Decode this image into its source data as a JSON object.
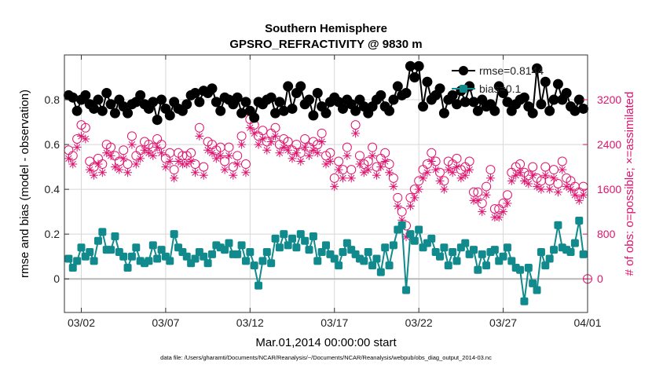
{
  "chart_data": {
    "type": "line",
    "title": "Southern Hemisphere",
    "subtitle": "GPSRO_REFRACTIVITY @ 9830 m",
    "xlabel": "Mar.01,2014 00:00:00 start",
    "ylabel": "rmse and bias (model - observation)",
    "ylabel_right": "# of obs: o=possible; ×=assimilated",
    "x_ticks": [
      "03/02",
      "03/07",
      "03/12",
      "03/17",
      "03/22",
      "03/27",
      "04/01"
    ],
    "x_tick_days": [
      1,
      6,
      11,
      16,
      21,
      26,
      31
    ],
    "xlim_days": [
      0,
      31
    ],
    "ylim": [
      -0.15,
      1.0
    ],
    "y_ticks": [
      "0",
      "0.2",
      "0.4",
      "0.6",
      "0.8"
    ],
    "y_tick_values": [
      0,
      0.2,
      0.4,
      0.6,
      0.8
    ],
    "ylim_right": [
      -600,
      4000
    ],
    "y_ticks_right": [
      "0",
      "800",
      "1600",
      "2400",
      "3200"
    ],
    "y_tick_values_right": [
      0,
      800,
      1600,
      2400,
      3200
    ],
    "grid": true,
    "legend_position": "top-right",
    "legend_entries": [
      "rmse=0.8144",
      "bias=0.1"
    ],
    "zero_line": 0,
    "colors": {
      "rmse": "#000000",
      "bias": "#108a8c",
      "obs": "#e0146e",
      "zero": "#b8b8b8",
      "grid": "#d8d8d8"
    },
    "x": [
      0.25,
      0.5,
      0.75,
      1.0,
      1.25,
      1.5,
      1.75,
      2.0,
      2.25,
      2.5,
      2.75,
      3.0,
      3.25,
      3.5,
      3.75,
      4.0,
      4.25,
      4.5,
      4.75,
      5.0,
      5.25,
      5.5,
      5.75,
      6.0,
      6.25,
      6.5,
      6.75,
      7.0,
      7.25,
      7.5,
      7.75,
      8.0,
      8.25,
      8.5,
      8.75,
      9.0,
      9.25,
      9.5,
      9.75,
      10.0,
      10.25,
      10.5,
      10.75,
      11.0,
      11.25,
      11.5,
      11.75,
      12.0,
      12.25,
      12.5,
      12.75,
      13.0,
      13.25,
      13.5,
      13.75,
      14.0,
      14.25,
      14.5,
      14.75,
      15.0,
      15.25,
      15.5,
      15.75,
      16.0,
      16.25,
      16.5,
      16.75,
      17.0,
      17.25,
      17.5,
      17.75,
      18.0,
      18.25,
      18.5,
      18.75,
      19.0,
      19.25,
      19.5,
      19.75,
      20.0,
      20.25,
      20.5,
      20.75,
      21.0,
      21.25,
      21.5,
      21.75,
      22.0,
      22.25,
      22.5,
      22.75,
      23.0,
      23.25,
      23.5,
      23.75,
      24.0,
      24.25,
      24.5,
      24.75,
      25.0,
      25.25,
      25.5,
      25.75,
      26.0,
      26.25,
      26.5,
      26.75,
      27.0,
      27.25,
      27.5,
      27.75,
      28.0,
      28.25,
      28.5,
      28.75,
      29.0,
      29.25,
      29.5,
      29.75,
      30.0,
      30.25,
      30.5,
      30.75
    ],
    "series": [
      {
        "name": "rmse",
        "axis": "left",
        "values": [
          0.82,
          0.81,
          0.75,
          0.8,
          0.82,
          0.78,
          0.76,
          0.8,
          0.75,
          0.83,
          0.78,
          0.74,
          0.8,
          0.77,
          0.74,
          0.78,
          0.79,
          0.82,
          0.78,
          0.76,
          0.79,
          0.71,
          0.8,
          0.76,
          0.73,
          0.79,
          0.76,
          0.75,
          0.78,
          0.82,
          0.83,
          0.79,
          0.84,
          0.83,
          0.85,
          0.79,
          0.75,
          0.81,
          0.8,
          0.78,
          0.81,
          0.74,
          0.79,
          0.75,
          0.72,
          0.79,
          0.78,
          0.8,
          0.81,
          0.74,
          0.79,
          0.75,
          0.86,
          0.76,
          0.83,
          0.86,
          0.78,
          0.8,
          0.73,
          0.83,
          0.77,
          0.74,
          0.79,
          0.81,
          0.79,
          0.76,
          0.8,
          0.78,
          0.75,
          0.8,
          0.77,
          0.74,
          0.77,
          0.8,
          0.82,
          0.77,
          0.75,
          0.8,
          0.86,
          0.82,
          0.83,
          0.95,
          0.9,
          0.95,
          0.77,
          0.88,
          0.8,
          0.82,
          0.85,
          0.74,
          0.8,
          0.82,
          0.78,
          0.84,
          0.79,
          0.86,
          0.79,
          0.75,
          0.8,
          0.77,
          0.78,
          0.75,
          0.86,
          0.83,
          0.79,
          0.75,
          0.78,
          0.8,
          0.81,
          0.77,
          0.74,
          0.94,
          0.78,
          0.88,
          0.75,
          0.8,
          0.87,
          0.8,
          0.83,
          0.77,
          0.75,
          0.8,
          0.76
        ]
      },
      {
        "name": "bias",
        "axis": "left",
        "values": [
          0.09,
          0.05,
          0.08,
          0.14,
          0.1,
          0.12,
          0.08,
          0.17,
          0.21,
          0.13,
          0.13,
          0.19,
          0.12,
          0.1,
          0.05,
          0.1,
          0.14,
          0.08,
          0.07,
          0.08,
          0.15,
          0.09,
          0.13,
          0.1,
          0.08,
          0.2,
          0.14,
          0.12,
          0.1,
          0.07,
          0.09,
          0.12,
          0.1,
          0.07,
          0.11,
          0.15,
          0.14,
          0.13,
          0.16,
          0.11,
          0.11,
          0.15,
          0.08,
          0.12,
          0.06,
          -0.03,
          0.08,
          0.12,
          0.07,
          0.18,
          0.14,
          0.2,
          0.15,
          0.18,
          0.14,
          0.2,
          0.17,
          0.13,
          0.19,
          0.08,
          0.12,
          0.15,
          0.11,
          0.09,
          0.06,
          0.12,
          0.16,
          0.13,
          0.11,
          0.09,
          0.08,
          0.12,
          0.06,
          0.09,
          0.03,
          0.14,
          0.06,
          0.15,
          0.22,
          0.24,
          -0.05,
          0.2,
          0.17,
          0.22,
          0.14,
          0.16,
          0.18,
          0.12,
          0.1,
          0.14,
          0.06,
          0.12,
          0.08,
          0.14,
          0.16,
          0.11,
          0.13,
          0.04,
          0.11,
          0.06,
          0.12,
          0.13,
          0.08,
          0.1,
          0.14,
          0.08,
          0.05,
          0.04,
          -0.1,
          0.05,
          -0.02,
          -0.05,
          0.12,
          0.06,
          0.09,
          0.13,
          0.24,
          0.14,
          0.13,
          0.12,
          0.16,
          0.26,
          0.11
        ]
      },
      {
        "name": "possible",
        "axis": "right",
        "values": [
          2300,
          2200,
          2500,
          2750,
          2700,
          2100,
          2000,
          2150,
          2050,
          2400,
          2350,
          2200,
          2100,
          2300,
          2050,
          2550,
          2200,
          2300,
          2450,
          2400,
          2350,
          2500,
          2400,
          2150,
          2250,
          1950,
          2250,
          2200,
          2200,
          2250,
          2050,
          2700,
          2000,
          2450,
          2400,
          2300,
          2350,
          2100,
          2350,
          2000,
          2200,
          2550,
          2050,
          2850,
          2750,
          2550,
          2650,
          2450,
          2600,
          2700,
          2400,
          2500,
          2450,
          2300,
          2400,
          2250,
          2500,
          2350,
          2450,
          2400,
          2600,
          2200,
          2250,
          1800,
          2100,
          1950,
          2350,
          1950,
          2750,
          2200,
          2050,
          2100,
          2350,
          2000,
          2150,
          2250,
          2050,
          1800,
          1450,
          1200,
          950,
          1450,
          1600,
          1750,
          1950,
          2050,
          2250,
          2100,
          1900,
          1750,
          2100,
          2050,
          2150,
          1950,
          2000,
          2100,
          1550,
          1550,
          1350,
          1650,
          1950,
          1250,
          1250,
          1350,
          1500,
          1900,
          2000,
          2050,
          1900,
          1850,
          2000,
          1800,
          1750,
          2000,
          1750,
          1950,
          1700,
          2100,
          1800,
          1750,
          1650,
          1550,
          1650
        ]
      },
      {
        "name": "assimilated",
        "axis": "right",
        "values": [
          2150,
          2050,
          2350,
          2550,
          2500,
          1950,
          1850,
          2050,
          1900,
          2250,
          2200,
          2000,
          1950,
          2150,
          1900,
          2400,
          2050,
          2150,
          2300,
          2250,
          2200,
          2350,
          2250,
          2000,
          2100,
          1800,
          2100,
          2050,
          2050,
          2100,
          1900,
          2550,
          1850,
          2300,
          2250,
          2150,
          2200,
          1950,
          2200,
          1850,
          2050,
          2400,
          1900,
          2700,
          2600,
          2400,
          2500,
          2300,
          2450,
          2550,
          2250,
          2350,
          2300,
          2150,
          2250,
          2100,
          2350,
          2200,
          2300,
          2250,
          2450,
          2050,
          2100,
          1650,
          1950,
          1800,
          2200,
          1800,
          2600,
          2050,
          1900,
          1950,
          2200,
          1850,
          2000,
          2100,
          1900,
          1650,
          1300,
          1050,
          750,
          1300,
          1450,
          1600,
          1800,
          1900,
          2100,
          1950,
          1750,
          1600,
          1950,
          1900,
          2000,
          1800,
          1850,
          1950,
          1400,
          1400,
          1200,
          1500,
          1800,
          1100,
          1100,
          1200,
          1350,
          1750,
          1850,
          1900,
          1750,
          1700,
          1850,
          1650,
          1600,
          1850,
          1600,
          1800,
          1550,
          1950,
          1650,
          1600,
          1500,
          1400,
          1500
        ]
      }
    ]
  },
  "footer": {
    "data_file": "data file: /Users/gharamti/Documents/NCAR/Reanalysis/~/Documents/NCAR/Reanalysis/webpub/obs_diag_output_2014-03.nc"
  }
}
